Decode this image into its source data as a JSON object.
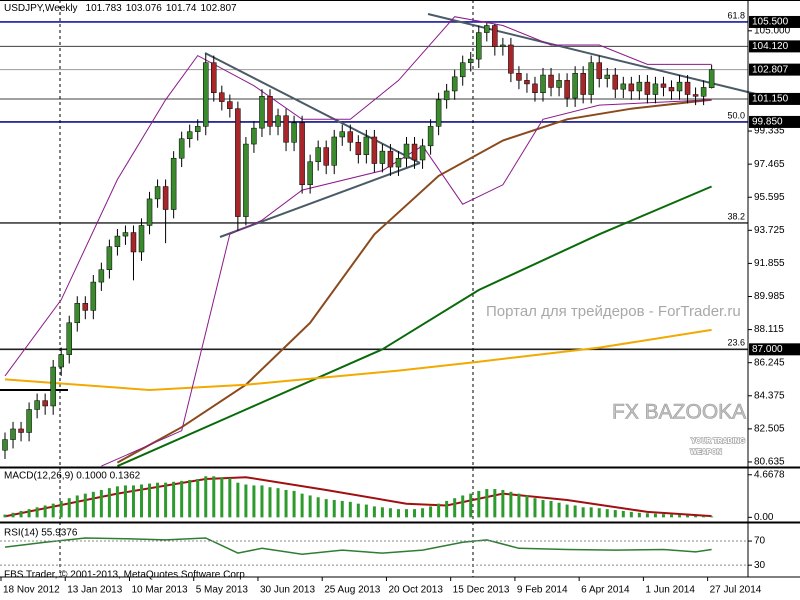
{
  "chart_data": {
    "type": "candlestick",
    "title": "USDJPY,Weekly",
    "categories": [
      "18 Nov 2012",
      null,
      null,
      null,
      null,
      null,
      null,
      null,
      "13 Jan 2013",
      null,
      null,
      null,
      null,
      null,
      null,
      null,
      "10 Mar 2013",
      null,
      null,
      null,
      null,
      null,
      null,
      null,
      "5 May 2013",
      null,
      null,
      null,
      null,
      null,
      null,
      null,
      "30 Jun 2013",
      null,
      null,
      null,
      null,
      null,
      null,
      null,
      "25 Aug 2013",
      null,
      null,
      null,
      null,
      null,
      null,
      null,
      "20 Oct 2013",
      null,
      null,
      null,
      null,
      null,
      null,
      null,
      "15 Dec 2013",
      null,
      null,
      null,
      null,
      null,
      null,
      null,
      "9 Feb 2014",
      null,
      null,
      null,
      null,
      null,
      null,
      null,
      "6 Apr 2014",
      null,
      null,
      null,
      null,
      null,
      null,
      null,
      "1 Jun 2014",
      null,
      null,
      null,
      null,
      null,
      null,
      null,
      "27 Jul 2014"
    ],
    "open": [
      81.3,
      81.9,
      82.5,
      82.3,
      83.6,
      84.1,
      83.8,
      86.0,
      86.7,
      88.5,
      89.6,
      89.2,
      90.8,
      91.5,
      92.8,
      93.4,
      93.6,
      92.5,
      94.0,
      95.5,
      96.2,
      94.9,
      97.8,
      98.9,
      99.3,
      99.6,
      103.2,
      101.5,
      101.0,
      100.6,
      94.5,
      98.6,
      99.5,
      101.3,
      99.6,
      100.2,
      98.7,
      99.8,
      96.3,
      97.6,
      98.4,
      97.4,
      99.0,
      99.3,
      98.7,
      98.0,
      99.0,
      97.5,
      98.2,
      97.3,
      97.8,
      98.6,
      97.7,
      98.5,
      99.6,
      101.1,
      101.6,
      102.4,
      103.2,
      103.4,
      104.9,
      105.3,
      104.1,
      104.2,
      102.6,
      102.2,
      102.0,
      101.5,
      102.5,
      101.8,
      102.2,
      101.2,
      102.6,
      101.4,
      103.2,
      102.3,
      102.5,
      101.7,
      102.0,
      101.6,
      102.1,
      101.4,
      102.0,
      101.8,
      101.6,
      102.1,
      101.4,
      101.3,
      101.783
    ],
    "high": [
      82.3,
      82.9,
      82.9,
      84.0,
      84.5,
      84.5,
      86.4,
      87.1,
      88.9,
      90.0,
      90.0,
      91.2,
      91.9,
      93.2,
      93.8,
      94.0,
      94.0,
      94.4,
      95.9,
      96.6,
      96.6,
      98.2,
      99.3,
      99.7,
      100.0,
      103.7,
      103.6,
      101.9,
      101.4,
      101.0,
      99.0,
      99.9,
      101.7,
      101.7,
      100.6,
      100.6,
      100.2,
      100.2,
      98.0,
      98.8,
      98.8,
      99.4,
      99.7,
      99.7,
      99.1,
      99.4,
      99.4,
      98.6,
      98.6,
      98.2,
      99.0,
      99.0,
      98.9,
      100.0,
      101.5,
      102.0,
      102.8,
      103.6,
      103.8,
      105.3,
      105.44,
      105.4,
      104.6,
      104.6,
      103.0,
      102.6,
      102.4,
      102.9,
      102.9,
      102.6,
      102.6,
      103.0,
      103.0,
      103.6,
      103.6,
      102.9,
      102.9,
      102.4,
      102.4,
      102.5,
      102.5,
      102.4,
      102.4,
      102.2,
      102.5,
      102.5,
      101.8,
      102.2,
      103.076
    ],
    "low": [
      80.8,
      81.4,
      81.8,
      81.8,
      83.1,
      83.3,
      83.3,
      85.5,
      86.2,
      88.0,
      88.7,
      88.7,
      90.3,
      91.0,
      92.3,
      92.9,
      90.9,
      92.0,
      93.5,
      95.0,
      93.0,
      94.4,
      97.3,
      98.4,
      98.8,
      99.1,
      101.0,
      100.5,
      100.1,
      93.7,
      94.0,
      98.1,
      99.0,
      99.1,
      99.1,
      98.2,
      98.2,
      95.8,
      95.8,
      97.1,
      96.9,
      96.9,
      98.5,
      98.2,
      97.5,
      97.5,
      97.0,
      97.0,
      96.8,
      96.8,
      97.3,
      97.2,
      97.2,
      98.0,
      99.1,
      100.6,
      101.1,
      101.9,
      102.7,
      102.9,
      104.4,
      103.6,
      103.6,
      102.1,
      101.7,
      101.5,
      101.0,
      101.0,
      101.3,
      101.3,
      100.7,
      100.7,
      100.9,
      100.9,
      101.8,
      101.8,
      101.2,
      101.2,
      101.1,
      101.1,
      100.9,
      100.9,
      101.3,
      101.1,
      101.1,
      100.9,
      100.8,
      100.8,
      101.74
    ],
    "close": [
      81.9,
      82.5,
      82.3,
      83.6,
      84.1,
      83.8,
      86.0,
      86.7,
      88.5,
      89.6,
      89.2,
      90.8,
      91.5,
      92.8,
      93.4,
      93.6,
      92.5,
      94.0,
      95.5,
      96.2,
      94.9,
      97.8,
      98.9,
      99.3,
      99.6,
      103.2,
      101.5,
      101.0,
      100.6,
      94.5,
      98.6,
      99.5,
      101.3,
      99.6,
      100.2,
      98.7,
      99.8,
      96.3,
      97.6,
      98.4,
      97.4,
      99.0,
      99.3,
      98.7,
      98.0,
      99.0,
      97.5,
      98.2,
      97.3,
      97.8,
      98.6,
      97.7,
      98.5,
      99.6,
      101.1,
      101.6,
      102.4,
      103.2,
      103.4,
      104.9,
      105.3,
      104.1,
      104.2,
      102.6,
      102.2,
      102.0,
      101.5,
      102.5,
      101.8,
      102.2,
      101.2,
      102.6,
      101.4,
      103.2,
      102.3,
      102.5,
      101.7,
      102.0,
      101.6,
      102.1,
      101.4,
      102.0,
      101.8,
      101.6,
      102.1,
      101.4,
      101.3,
      101.8,
      102.807
    ],
    "bull_color": "#3b8a2e",
    "bear_color": "#a8262a",
    "ylim": [
      80.35,
      105.95
    ],
    "yticks": [
      80.635,
      82.505,
      84.375,
      86.245,
      88.115,
      89.985,
      91.855,
      93.725,
      95.595,
      97.465,
      99.335,
      {
        "value": 105,
        "label": "105.000"
      }
    ],
    "levels": [
      {
        "price": 105.5,
        "label": "105.500",
        "fib": "61.8",
        "color": "#1a1aa0"
      },
      {
        "price": 104.12,
        "label": "104.120",
        "color": "#404040"
      },
      {
        "price": 101.15,
        "label": "101.150",
        "color": "#404040"
      },
      {
        "price": 99.85,
        "label": "99.850",
        "fib": "50.0",
        "color": "#10108a"
      },
      {
        "price": 94.14,
        "fib": "38.2",
        "color": "#404040"
      },
      {
        "price": 87.0,
        "label": "87.000",
        "fib": "23.6",
        "color": "#202020"
      }
    ],
    "lines": [
      {
        "color": "#8b4a1c",
        "x": [
          14,
          22,
          30,
          38,
          46,
          54,
          62,
          70,
          78,
          88
        ],
        "values": [
          80.6,
          82.6,
          85.0,
          88.5,
          93.5,
          96.8,
          98.8,
          100.0,
          100.6,
          101.1
        ]
      },
      {
        "color": "#0a6a0a",
        "x": [
          14,
          30,
          47,
          59,
          74,
          88
        ],
        "values": [
          80.4,
          83.6,
          87.0,
          90.35,
          93.5,
          96.2
        ]
      },
      {
        "color": "#f2a900",
        "x": [
          0,
          18,
          30,
          49,
          59,
          74,
          88
        ],
        "values": [
          85.3,
          84.7,
          85.0,
          85.8,
          86.3,
          87.1,
          88.1
        ]
      },
      {
        "color": "#8a1a8a",
        "x": [
          0,
          7,
          14,
          20,
          24,
          31,
          37,
          43,
          49,
          56,
          62,
          68,
          74,
          80,
          88
        ],
        "values": [
          85.5,
          89.8,
          96.6,
          101.1,
          103.6,
          101.9,
          100.0,
          100.0,
          102.2,
          105.8,
          105.3,
          104.2,
          104.2,
          103.1,
          103.1
        ]
      },
      {
        "color": "#8a1a8a",
        "x": [
          12,
          22,
          28,
          32,
          37,
          47,
          52,
          57,
          62,
          67,
          74,
          88
        ],
        "values": [
          80.4,
          82.4,
          93.5,
          94.3,
          96.0,
          97.1,
          98.5,
          95.2,
          96.3,
          100.0,
          100.8,
          101.1
        ]
      }
    ],
    "macd": {
      "title": "MACD(12,26,9) 0.1000 0.1362",
      "ylim": [
        -0.4,
        5.3
      ],
      "yticks": [
        {
          "value": 0,
          "label": "0.00"
        },
        4.6678
      ],
      "color": "#2e9a2e",
      "values": [
        0.3,
        0.5,
        0.7,
        0.9,
        1.1,
        1.3,
        1.5,
        1.8,
        2.1,
        2.4,
        2.6,
        2.8,
        3.0,
        3.2,
        3.4,
        3.5,
        3.5,
        3.6,
        3.7,
        3.8,
        3.8,
        3.9,
        4.0,
        4.1,
        4.2,
        4.5,
        4.5,
        4.4,
        4.3,
        3.8,
        3.6,
        3.5,
        3.5,
        3.3,
        3.2,
        3.0,
        2.9,
        2.6,
        2.4,
        2.2,
        2.0,
        1.9,
        1.8,
        1.7,
        1.5,
        1.4,
        1.2,
        1.1,
        1.0,
        0.9,
        0.9,
        0.9,
        1.0,
        1.2,
        1.5,
        1.8,
        2.1,
        2.4,
        2.6,
        2.9,
        3.1,
        3.1,
        3.0,
        2.8,
        2.6,
        2.4,
        2.1,
        1.9,
        1.8,
        1.6,
        1.4,
        1.3,
        1.1,
        1.1,
        1.0,
        0.9,
        0.8,
        0.7,
        0.6,
        0.5,
        0.45,
        0.4,
        0.35,
        0.3,
        0.25,
        0.2,
        0.15,
        0.12,
        0.1
      ],
      "signal": {
        "color": "#a01010",
        "x": [
          0,
          14,
          25,
          30,
          40,
          50,
          55,
          62,
          70,
          80,
          88
        ],
        "values": [
          0.1,
          2.6,
          4.2,
          4.4,
          3.0,
          1.5,
          1.3,
          2.6,
          1.9,
          0.6,
          0.1362
        ]
      }
    },
    "rsi": {
      "title": "RSI(14) 55.9376",
      "ylim": [
        12,
        95
      ],
      "yticks": [
        30,
        70
      ],
      "color": "#2e7d32",
      "x": [
        0,
        5,
        10,
        15,
        20,
        25,
        29,
        32,
        37,
        42,
        47,
        52,
        57,
        60,
        64,
        70,
        76,
        82,
        86,
        88
      ],
      "values": [
        60,
        68,
        75,
        74,
        72,
        75,
        50,
        58,
        48,
        55,
        50,
        55,
        68,
        72,
        58,
        56,
        55,
        56,
        52,
        55.9376
      ]
    },
    "copyright": "FBS Trader, © 2001-2013, MetaQuotes Software Corp.",
    "watermark": "Портал для трейдеров - ForTrader.ru",
    "logo": "FX BAZOOKA",
    "logo_tagline": [
      "YOUR TRADING",
      "WEAPON"
    ]
  }
}
